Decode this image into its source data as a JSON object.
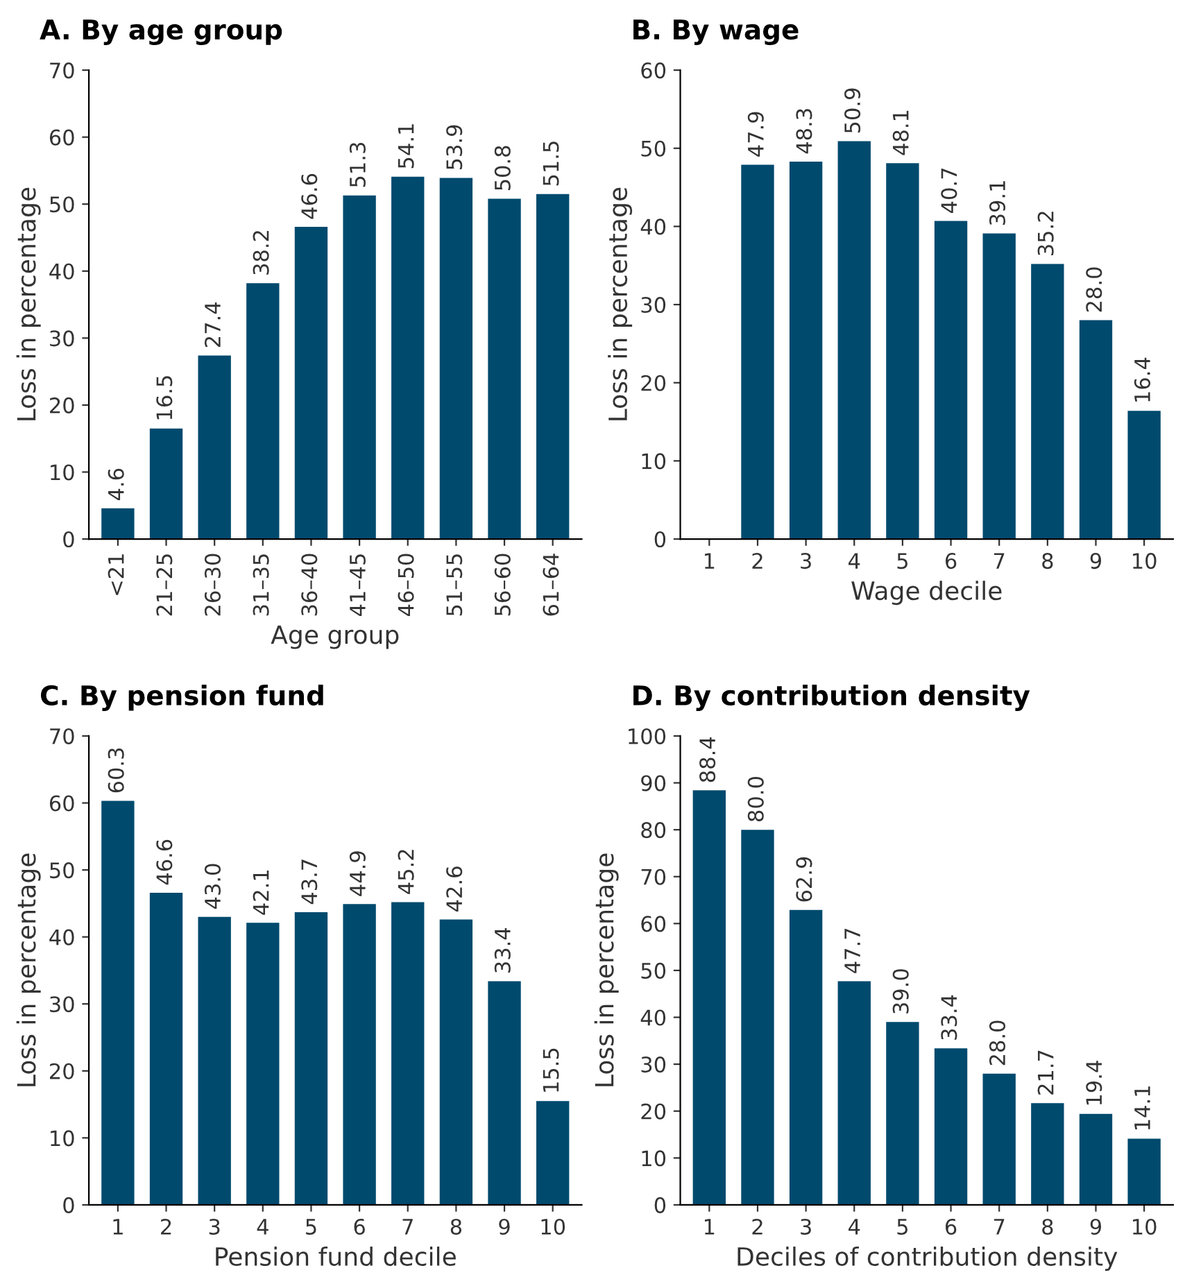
{
  "chart_data": [
    {
      "type": "bar",
      "title": "A. By age group",
      "xlabel": "Age group",
      "ylabel": "Loss in percentage",
      "color": "#004a6e",
      "ylim": [
        0,
        70
      ],
      "yticks": [
        0,
        10,
        20,
        30,
        40,
        50,
        60,
        70
      ],
      "categories": [
        "<21",
        "21–25",
        "26–30",
        "31–35",
        "36–40",
        "41–45",
        "46–50",
        "51–55",
        "56–60",
        "61–64"
      ],
      "values": [
        4.6,
        16.5,
        27.4,
        38.2,
        46.6,
        51.3,
        54.1,
        53.9,
        50.8,
        51.5
      ],
      "value_labels": [
        "4.6",
        "16.5",
        "27.4",
        "38.2",
        "46.6",
        "51.3",
        "54.1",
        "53.9",
        "50.8",
        "51.5"
      ]
    },
    {
      "type": "bar",
      "title": "B. By wage",
      "xlabel": "Wage decile",
      "ylabel": "Loss in percentage",
      "color": "#004a6e",
      "ylim": [
        0,
        60
      ],
      "yticks": [
        0,
        10,
        20,
        30,
        40,
        50,
        60
      ],
      "categories": [
        "1",
        "2",
        "3",
        "4",
        "5",
        "6",
        "7",
        "8",
        "9",
        "10"
      ],
      "values": [
        null,
        47.9,
        48.3,
        50.9,
        48.1,
        40.7,
        39.1,
        35.2,
        28,
        16.4
      ],
      "value_labels": [
        null,
        "47.9",
        "48.3",
        "50.9",
        "48.1",
        "40.7",
        "39.1",
        "35.2",
        "28.0",
        "16.4"
      ]
    },
    {
      "type": "bar",
      "title": "C. By pension fund",
      "xlabel": "Pension fund decile",
      "ylabel": "Loss in percentage",
      "color": "#004a6e",
      "ylim": [
        0,
        70
      ],
      "yticks": [
        0,
        10,
        20,
        30,
        40,
        50,
        60,
        70
      ],
      "categories": [
        "1",
        "2",
        "3",
        "4",
        "5",
        "6",
        "7",
        "8",
        "9",
        "10"
      ],
      "values": [
        60.3,
        46.6,
        43,
        42.1,
        43.7,
        44.9,
        45.2,
        42.6,
        33.4,
        15.5
      ],
      "value_labels": [
        "60.3",
        "46.6",
        "43.0",
        "42.1",
        "43.7",
        "44.9",
        "45.2",
        "42.6",
        "33.4",
        "15.5"
      ]
    },
    {
      "type": "bar",
      "title": "D. By contribution density",
      "xlabel": "Deciles of contribution density",
      "ylabel": "Loss in percentage",
      "color": "#004a6e",
      "ylim": [
        0,
        100
      ],
      "yticks": [
        0,
        10,
        20,
        30,
        40,
        50,
        60,
        70,
        80,
        90,
        100
      ],
      "categories": [
        "1",
        "2",
        "3",
        "4",
        "5",
        "6",
        "7",
        "8",
        "9",
        "10"
      ],
      "values": [
        88.4,
        80,
        62.9,
        47.7,
        39,
        33.4,
        28,
        21.7,
        19.4,
        14.1
      ],
      "value_labels": [
        "88.4",
        "80.0",
        "62.9",
        "47.7",
        "39.0",
        "33.4",
        "28.0",
        "21.7",
        "19.4",
        "14.1"
      ]
    }
  ]
}
